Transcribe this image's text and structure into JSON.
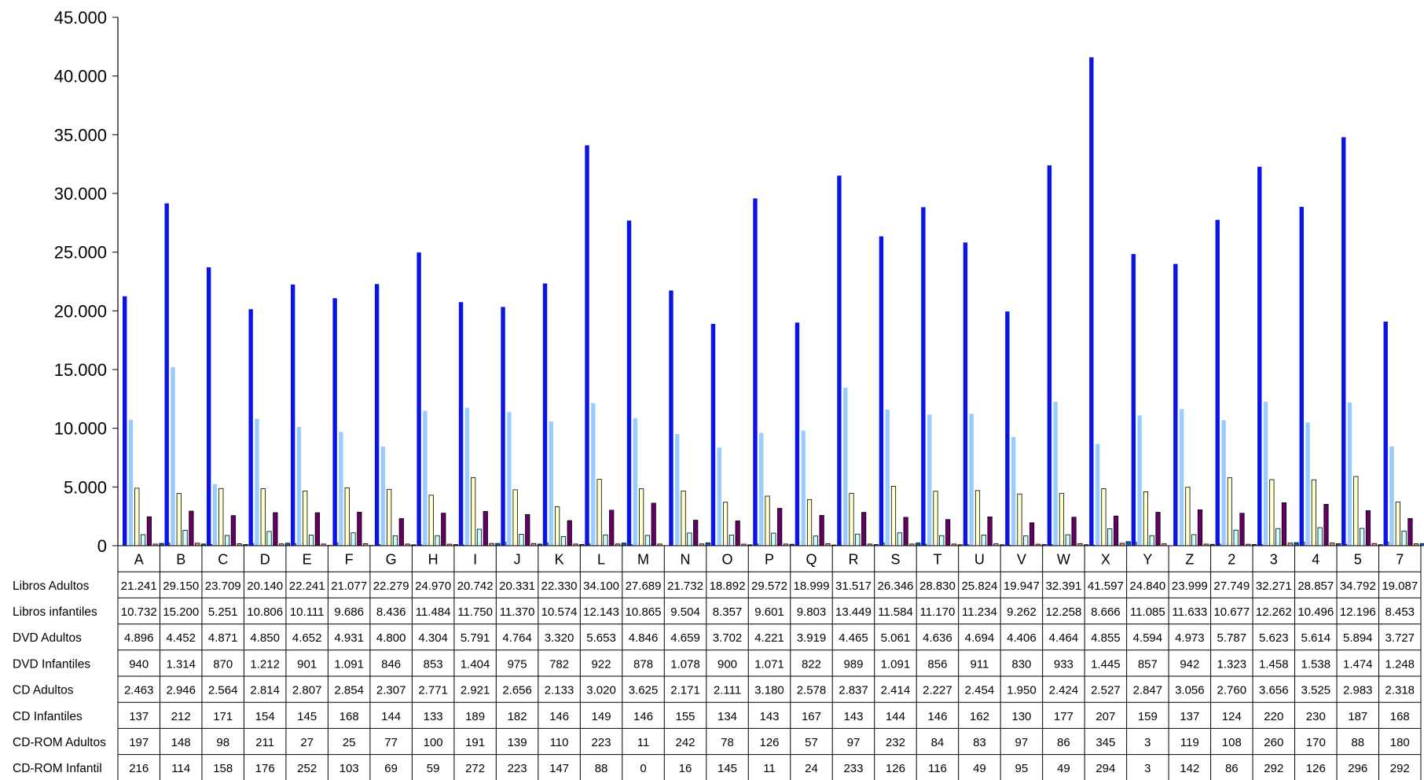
{
  "chart_data": {
    "type": "bar",
    "categories": [
      "A",
      "B",
      "C",
      "D",
      "E",
      "F",
      "G",
      "H",
      "I",
      "J",
      "K",
      "L",
      "M",
      "N",
      "O",
      "P",
      "Q",
      "R",
      "S",
      "T",
      "U",
      "V",
      "W",
      "X",
      "Y",
      "Z",
      "2",
      "3",
      "4",
      "5",
      "7"
    ],
    "yticks": [
      "45.000",
      "40.000",
      "35.000",
      "30.000",
      "25.000",
      "20.000",
      "15.000",
      "10.000",
      "5.000",
      "0"
    ],
    "ylim": [
      0,
      45000
    ],
    "grid": false,
    "legend": "data table below chart",
    "series": [
      {
        "name": "Libros Adultos",
        "color": "#0a14e6",
        "values": [
          21241,
          29150,
          23709,
          20140,
          22241,
          21077,
          22279,
          24970,
          20742,
          20331,
          22330,
          34100,
          27689,
          21732,
          18892,
          29572,
          18999,
          31517,
          26346,
          28830,
          25824,
          19947,
          32391,
          41597,
          24840,
          23999,
          27749,
          32271,
          28857,
          34792,
          19087
        ],
        "labels": [
          "21.241",
          "29.150",
          "23.709",
          "20.140",
          "22.241",
          "21.077",
          "22.279",
          "24.970",
          "20.742",
          "20.331",
          "22.330",
          "34.100",
          "27.689",
          "21.732",
          "18.892",
          "29.572",
          "18.999",
          "31.517",
          "26.346",
          "28.830",
          "25.824",
          "19.947",
          "32.391",
          "41.597",
          "24.840",
          "23.999",
          "27.749",
          "32.271",
          "28.857",
          "34.792",
          "19.087"
        ]
      },
      {
        "name": "Libros infantiles",
        "color": "#99ccff",
        "values": [
          10732,
          15200,
          5251,
          10806,
          10111,
          9686,
          8436,
          11484,
          11750,
          11370,
          10574,
          12143,
          10865,
          9504,
          8357,
          9601,
          9803,
          13449,
          11584,
          11170,
          11234,
          9262,
          12258,
          8666,
          11085,
          11633,
          10677,
          12262,
          10496,
          12196,
          8453
        ],
        "labels": [
          "10.732",
          "15.200",
          "5.251",
          "10.806",
          "10.111",
          "9.686",
          "8.436",
          "11.484",
          "11.750",
          "11.370",
          "10.574",
          "12.143",
          "10.865",
          "9.504",
          "8.357",
          "9.601",
          "9.803",
          "13.449",
          "11.584",
          "11.170",
          "11.234",
          "9.262",
          "12.258",
          "8.666",
          "11.085",
          "11.633",
          "10.677",
          "12.262",
          "10.496",
          "12.196",
          "8.453"
        ]
      },
      {
        "name": "DVD Adultos",
        "color": "#ffffcc",
        "values": [
          4896,
          4452,
          4871,
          4850,
          4652,
          4931,
          4800,
          4304,
          5791,
          4764,
          3320,
          5653,
          4846,
          4659,
          3702,
          4221,
          3919,
          4465,
          5061,
          4636,
          4694,
          4406,
          4464,
          4855,
          4594,
          4973,
          5787,
          5623,
          5614,
          5894,
          3727
        ],
        "labels": [
          "4.896",
          "4.452",
          "4.871",
          "4.850",
          "4.652",
          "4.931",
          "4.800",
          "4.304",
          "5.791",
          "4.764",
          "3.320",
          "5.653",
          "4.846",
          "4.659",
          "3.702",
          "4.221",
          "3.919",
          "4.465",
          "5.061",
          "4.636",
          "4.694",
          "4.406",
          "4.464",
          "4.855",
          "4.594",
          "4.973",
          "5.787",
          "5.623",
          "5.614",
          "5.894",
          "3.727"
        ]
      },
      {
        "name": "DVD Infantiles",
        "color": "#ccffff",
        "values": [
          940,
          1314,
          870,
          1212,
          901,
          1091,
          846,
          853,
          1404,
          975,
          782,
          922,
          878,
          1078,
          900,
          1071,
          822,
          989,
          1091,
          856,
          911,
          830,
          933,
          1445,
          857,
          942,
          1323,
          1458,
          1538,
          1474,
          1248
        ],
        "labels": [
          "940",
          "1.314",
          "870",
          "1.212",
          "901",
          "1.091",
          "846",
          "853",
          "1.404",
          "975",
          "782",
          "922",
          "878",
          "1.078",
          "900",
          "1.071",
          "822",
          "989",
          "1.091",
          "856",
          "911",
          "830",
          "933",
          "1.445",
          "857",
          "942",
          "1.323",
          "1.458",
          "1.538",
          "1.474",
          "1.248"
        ]
      },
      {
        "name": "CD Adultos",
        "color": "#660066",
        "values": [
          2463,
          2946,
          2564,
          2814,
          2807,
          2854,
          2307,
          2771,
          2921,
          2656,
          2133,
          3020,
          3625,
          2171,
          2111,
          3180,
          2578,
          2837,
          2414,
          2227,
          2454,
          1950,
          2424,
          2527,
          2847,
          3056,
          2760,
          3656,
          3525,
          2983,
          2318
        ],
        "labels": [
          "2.463",
          "2.946",
          "2.564",
          "2.814",
          "2.807",
          "2.854",
          "2.307",
          "2.771",
          "2.921",
          "2.656",
          "2.133",
          "3.020",
          "3.625",
          "2.171",
          "2.111",
          "3.180",
          "2.578",
          "2.837",
          "2.414",
          "2.227",
          "2.454",
          "1.950",
          "2.424",
          "2.527",
          "2.847",
          "3.056",
          "2.760",
          "3.656",
          "3.525",
          "2.983",
          "2.318"
        ]
      },
      {
        "name": "CD Infantiles",
        "color": "#ff8080",
        "values": [
          137,
          212,
          171,
          154,
          145,
          168,
          144,
          133,
          189,
          182,
          146,
          149,
          146,
          155,
          134,
          143,
          167,
          143,
          144,
          146,
          162,
          130,
          177,
          207,
          159,
          137,
          124,
          220,
          230,
          187,
          168
        ],
        "labels": [
          "137",
          "212",
          "171",
          "154",
          "145",
          "168",
          "144",
          "133",
          "189",
          "182",
          "146",
          "149",
          "146",
          "155",
          "134",
          "143",
          "167",
          "143",
          "144",
          "146",
          "162",
          "130",
          "177",
          "207",
          "159",
          "137",
          "124",
          "220",
          "230",
          "187",
          "168"
        ]
      },
      {
        "name": "CD-ROM Adultos",
        "color": "#0066cc",
        "values": [
          197,
          148,
          98,
          211,
          27,
          25,
          77,
          100,
          191,
          139,
          110,
          223,
          11,
          242,
          78,
          126,
          57,
          97,
          232,
          84,
          83,
          97,
          86,
          345,
          3,
          119,
          108,
          260,
          170,
          88,
          180
        ],
        "labels": [
          "197",
          "148",
          "98",
          "211",
          "27",
          "25",
          "77",
          "100",
          "191",
          "139",
          "110",
          "223",
          "11",
          "242",
          "78",
          "126",
          "57",
          "97",
          "232",
          "84",
          "83",
          "97",
          "86",
          "345",
          "3",
          "119",
          "108",
          "260",
          "170",
          "88",
          "180"
        ]
      },
      {
        "name": "CD-ROM Infantil",
        "color": "#ccccff",
        "values": [
          216,
          114,
          158,
          176,
          252,
          103,
          69,
          59,
          272,
          223,
          147,
          88,
          0,
          16,
          145,
          11,
          24,
          233,
          126,
          116,
          49,
          95,
          49,
          294,
          3,
          142,
          86,
          292,
          126,
          296,
          292
        ],
        "labels": [
          "216",
          "114",
          "158",
          "176",
          "252",
          "103",
          "69",
          "59",
          "272",
          "223",
          "147",
          "88",
          "0",
          "16",
          "145",
          "11",
          "24",
          "233",
          "126",
          "116",
          "49",
          "95",
          "49",
          "294",
          "3",
          "142",
          "86",
          "292",
          "126",
          "296",
          "292"
        ]
      }
    ]
  }
}
